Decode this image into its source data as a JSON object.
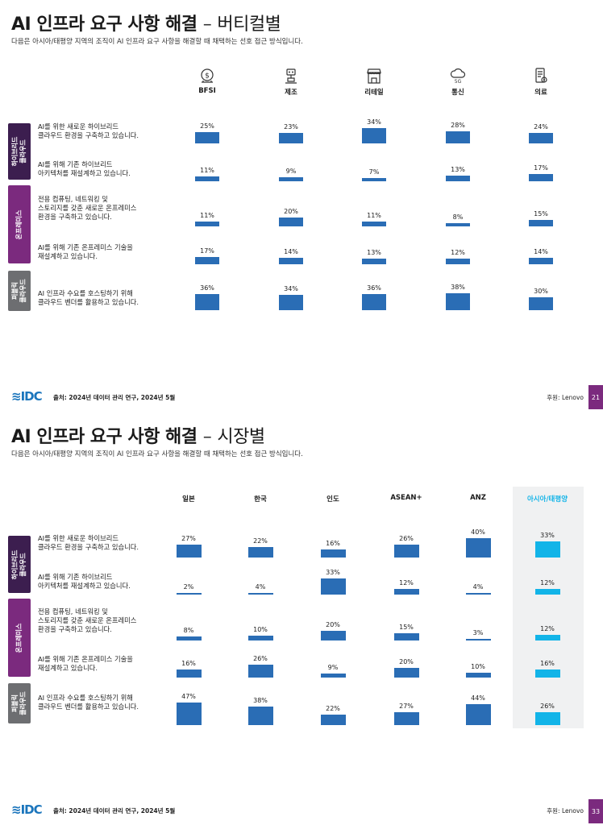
{
  "pages": [
    {
      "title": "AI 인프라 요구 사항 해결",
      "title_dash": "–",
      "title_sub": "버티컬별",
      "subtitle": "다음은 아시아/태평양 지역의 조직이 AI 인프라 요구 사항을 해결할 때 채택하는 선호 접근 방식입니다.",
      "footer": {
        "logo": "IDC",
        "source": "출처: 2024년 데이터 관리 연구, 2024년 5월",
        "sponsor": "후원: Lenovo",
        "page_number": "21"
      },
      "highlight_column": -1,
      "chart_data": {
        "type": "bar",
        "categories": [
          "BFSI",
          "제조",
          "리테일",
          "통신",
          "의료"
        ],
        "category_icons": [
          "bank-icon",
          "factory-robot-icon",
          "storefront-icon",
          "cloud-5g-icon",
          "medical-device-icon"
        ],
        "groups": [
          {
            "label": "하이브리드\n클라우드",
            "color": "#3c1e4f",
            "rows": [
              0,
              1
            ]
          },
          {
            "label": "온프레미스",
            "color": "#7b2a7e",
            "rows": [
              2,
              3
            ]
          },
          {
            "label": "퍼블릭\n클라우드",
            "color": "#6d6e71",
            "rows": [
              4
            ]
          }
        ],
        "series": [
          {
            "name": "AI를 위한 새로운 하이브리드 클라우드 환경을 구축하고 있습니다.",
            "label_lines": [
              "AI를 위한 새로운 하이브리드",
              "클라우드 환경을 구축하고 있습니다."
            ],
            "values": [
              25,
              23,
              34,
              28,
              24
            ],
            "labels": [
              "25%",
              "23%",
              "34%",
              "28%",
              "24%"
            ]
          },
          {
            "name": "AI를 위해 기존 하이브리드 아키텍처를 재설계하고 있습니다.",
            "label_lines": [
              "AI를 위해 기존 하이브리드",
              "아키텍처를 재설계하고 있습니다."
            ],
            "values": [
              11,
              9,
              7,
              13,
              17
            ],
            "labels": [
              "11%",
              "9%",
              "7%",
              "13%",
              "17%"
            ]
          },
          {
            "name": "전용 컴퓨팅, 네트워킹 및 스토리지를 갖춘 새로운 온프레미스 환경을 구축하고 있습니다.",
            "label_lines": [
              "전용 컴퓨팅, 네트워킹 및",
              "스토리지를 갖춘 새로운 온프레미스",
              "환경을 구축하고 있습니다."
            ],
            "values": [
              11,
              20,
              11,
              8,
              15
            ],
            "labels": [
              "11%",
              "20%",
              "11%",
              "8%",
              "15%"
            ]
          },
          {
            "name": "AI를 위해 기존 온프레미스 기술을 재설계하고 있습니다.",
            "label_lines": [
              "AI를 위해 기존 온프레미스 기술을",
              "재설계하고 있습니다."
            ],
            "values": [
              17,
              14,
              13,
              12,
              14
            ],
            "labels": [
              "17%",
              "14%",
              "13%",
              "12%",
              "14%"
            ]
          },
          {
            "name": "AI 인프라 수요를 호스팅하기 위해 클라우드 벤더를 활용하고 있습니다.",
            "label_lines": [
              "AI 인프라 수요를 호스팅하기 위해",
              "클라우드 벤더를 활용하고 있습니다."
            ],
            "values": [
              36,
              34,
              36,
              38,
              30
            ],
            "labels": [
              "36%",
              "34%",
              "36%",
              "38%",
              "30%"
            ]
          }
        ]
      }
    },
    {
      "title": "AI 인프라 요구 사항 해결",
      "title_dash": "–",
      "title_sub": "시장별",
      "subtitle": "다음은 아시아/태평양 지역의 조직이 AI 인프라 요구 사항을 해결할 때 채택하는 선호 접근 방식입니다.",
      "footer": {
        "logo": "IDC",
        "source": "출처: 2024년 데이터 관리 연구, 2024년 5월",
        "sponsor": "후원: Lenovo",
        "page_number": "33"
      },
      "highlight_column": 5,
      "highlight_color": "#12b4e8",
      "chart_data": {
        "type": "bar",
        "categories": [
          "일본",
          "한국",
          "인도",
          "ASEAN+",
          "ANZ",
          "아시아/태평양"
        ],
        "groups": [
          {
            "label": "하이브리드\n클라우드",
            "color": "#3c1e4f",
            "rows": [
              0,
              1
            ]
          },
          {
            "label": "온프레미스",
            "color": "#7b2a7e",
            "rows": [
              2,
              3
            ]
          },
          {
            "label": "퍼블릭\n클라우드",
            "color": "#6d6e71",
            "rows": [
              4
            ]
          }
        ],
        "series": [
          {
            "name": "AI를 위한 새로운 하이브리드 클라우드 환경을 구축하고 있습니다.",
            "label_lines": [
              "AI를 위한 새로운 하이브리드",
              "클라우드 환경을 구축하고 있습니다."
            ],
            "values": [
              27,
              22,
              16,
              26,
              40,
              33
            ],
            "labels": [
              "27%",
              "22%",
              "16%",
              "26%",
              "40%",
              "33%"
            ]
          },
          {
            "name": "AI를 위해 기존 하이브리드 아키텍처를 재설계하고 있습니다.",
            "label_lines": [
              "AI를 위해 기존 하이브리드",
              "아키텍처를 재설계하고 있습니다."
            ],
            "values": [
              2,
              4,
              33,
              12,
              4,
              12
            ],
            "labels": [
              "2%",
              "4%",
              "33%",
              "12%",
              "4%",
              "12%"
            ]
          },
          {
            "name": "전용 컴퓨팅, 네트워킹 및 스토리지를 갖춘 새로운 온프레미스 환경을 구축하고 있습니다.",
            "label_lines": [
              "전용 컴퓨팅, 네트워킹 및",
              "스토리지를 갖춘 새로운 온프레미스",
              "환경을 구축하고 있습니다."
            ],
            "values": [
              8,
              10,
              20,
              15,
              3,
              12
            ],
            "labels": [
              "8%",
              "10%",
              "20%",
              "15%",
              "3%",
              "12%"
            ]
          },
          {
            "name": "AI를 위해 기존 온프레미스 기술을 재설계하고 있습니다.",
            "label_lines": [
              "AI를 위해 기존 온프레미스 기술을",
              "재설계하고 있습니다."
            ],
            "values": [
              16,
              26,
              9,
              20,
              10,
              16
            ],
            "labels": [
              "16%",
              "26%",
              "9%",
              "20%",
              "10%",
              "16%"
            ]
          },
          {
            "name": "AI 인프라 수요를 호스팅하기 위해 클라우드 벤더를 활용하고 있습니다.",
            "label_lines": [
              "AI 인프라 수요를 호스팅하기 위해",
              "클라우드 벤더를 활용하고 있습니다."
            ],
            "values": [
              47,
              38,
              22,
              27,
              44,
              26
            ],
            "labels": [
              "47%",
              "38%",
              "22%",
              "27%",
              "44%",
              "26%"
            ]
          }
        ]
      }
    }
  ]
}
